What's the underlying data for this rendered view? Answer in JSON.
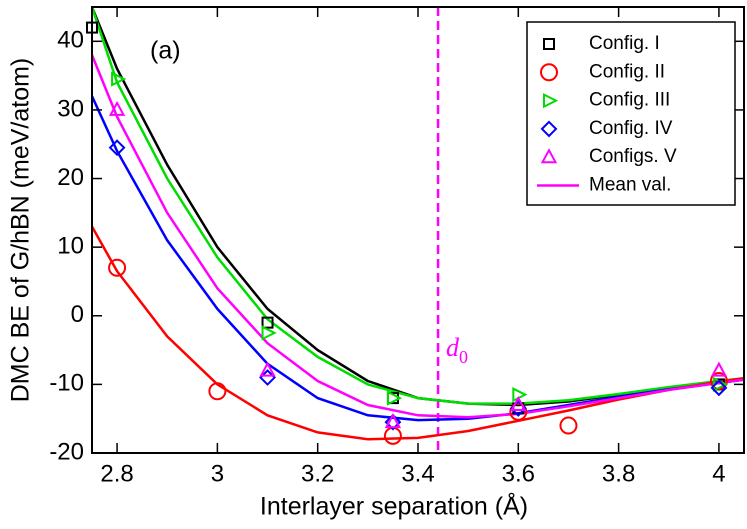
{
  "chart_data": {
    "type": "scatter",
    "x_label": "Interlayer separation (Å)",
    "y_label": "DMC BE of G/hBN (meV/atom)",
    "annotation": "(a)",
    "xlim": [
      2.75,
      4.05
    ],
    "ylim": [
      -20,
      45
    ],
    "xticks": [
      2.8,
      3,
      3.2,
      3.4,
      3.6,
      3.8,
      4
    ],
    "yticks": [
      -20,
      -10,
      0,
      10,
      20,
      30,
      40
    ],
    "legend": "upper right",
    "series": [
      {
        "name": "Config. I",
        "color": "#000000",
        "marker": "square",
        "x": [
          2.75,
          3.1,
          3.35,
          3.6,
          4
        ],
        "values": [
          42,
          -1,
          -12,
          -13.5,
          -10
        ]
      },
      {
        "name": "Config. II",
        "color": "#ff0000",
        "marker": "circle",
        "x": [
          2.8,
          3.0,
          3.35,
          3.6,
          3.7,
          4
        ],
        "values": [
          7,
          -11,
          -17.5,
          -14,
          -16,
          -9.5
        ]
      },
      {
        "name": "Config. III",
        "color": "#00dd00",
        "marker": "triangle-right",
        "x": [
          2.8,
          3.1,
          3.35,
          3.6,
          4
        ],
        "values": [
          34.5,
          -2.5,
          -12,
          -11.5,
          -10
        ]
      },
      {
        "name": "Config. IV",
        "color": "#0000ff",
        "marker": "diamond",
        "x": [
          2.8,
          3.1,
          3.35,
          3.6,
          4
        ],
        "values": [
          24.5,
          -9,
          -15.5,
          -13.5,
          -10.5
        ]
      },
      {
        "name": "Configs. V",
        "color": "#ff00ff",
        "marker": "triangle-up",
        "x": [
          2.8,
          3.1,
          3.35,
          3.6,
          4
        ],
        "values": [
          30,
          -8,
          -15.5,
          -13,
          -8
        ]
      },
      {
        "name": "Mean val.",
        "color": "#ff00ff",
        "marker": "line",
        "x": [
          2.75,
          2.8,
          2.9,
          3.0,
          3.1,
          3.2,
          3.3,
          3.4,
          3.5,
          3.6,
          3.7,
          3.8,
          3.9,
          4.0,
          4.05
        ],
        "values": [
          38,
          29,
          15,
          4,
          -4,
          -9.5,
          -13,
          -14.5,
          -14.8,
          -14.3,
          -13.2,
          -12,
          -10.8,
          -9.8,
          -9.3
        ]
      }
    ],
    "fit_x": [
      2.75,
      2.8,
      2.9,
      3.0,
      3.1,
      3.2,
      3.3,
      3.4,
      3.5,
      3.6,
      3.7,
      3.8,
      3.9,
      4.0,
      4.05
    ],
    "fits": [
      {
        "color": "#000000",
        "values": [
          45,
          36,
          22,
          10,
          1,
          -5,
          -9.5,
          -12,
          -12.8,
          -13,
          -12.5,
          -11.5,
          -10.5,
          -9.8,
          -9.3
        ]
      },
      {
        "color": "#00dd00",
        "values": [
          45,
          34,
          20,
          8.5,
          -0.5,
          -6,
          -10,
          -12,
          -12.8,
          -12.8,
          -12.3,
          -11.4,
          -10.4,
          -9.5,
          -9.1
        ]
      },
      {
        "color": "#0000ff",
        "values": [
          32,
          24,
          11,
          1,
          -7,
          -12,
          -14.5,
          -15.2,
          -15,
          -14.2,
          -13,
          -11.8,
          -10.7,
          -9.8,
          -9.3
        ]
      },
      {
        "color": "#ff0000",
        "values": [
          13,
          6.5,
          -3,
          -10,
          -14.5,
          -17,
          -18,
          -17.8,
          -16.8,
          -15.3,
          -13.8,
          -12.2,
          -10.8,
          -9.6,
          -9.1
        ]
      }
    ],
    "vline": {
      "x": 3.44,
      "color": "#ff00ff",
      "label": "d",
      "label_sub": "0"
    }
  }
}
